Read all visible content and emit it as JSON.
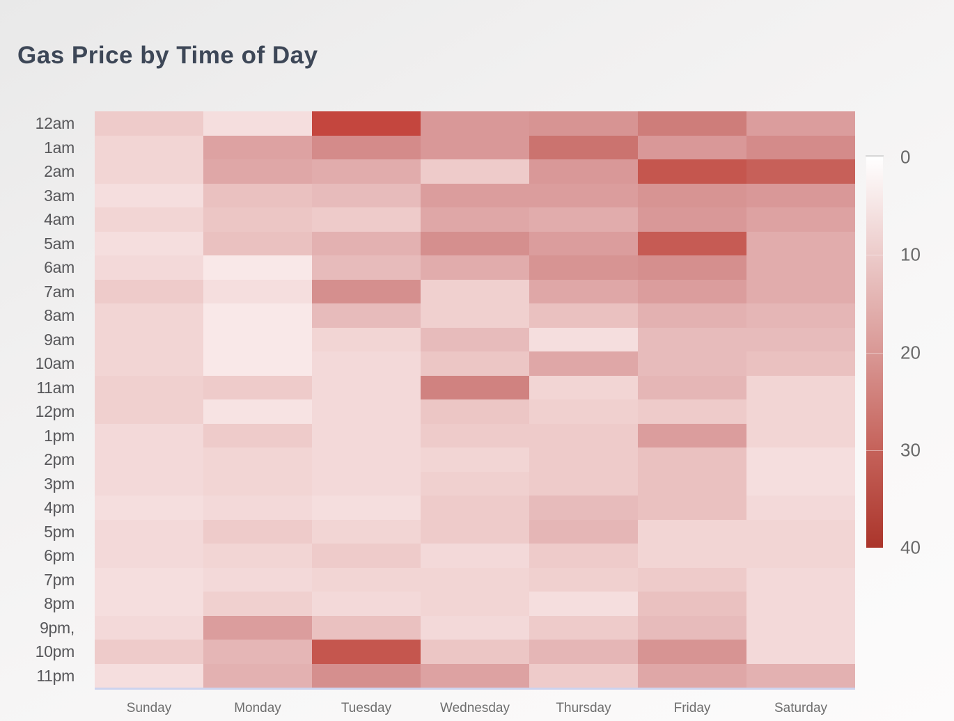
{
  "title": "Gas Price by Time of Day",
  "chart_data": {
    "type": "heatmap",
    "title": "Gas Price by Time of Day",
    "x_categories": [
      "Sunday",
      "Monday",
      "Tuesday",
      "Wednesday",
      "Thursday",
      "Friday",
      "Saturday"
    ],
    "y_categories": [
      "12am",
      "1am",
      "2am",
      "3am",
      "4am",
      "5am",
      "6am",
      "7am",
      "8am",
      "9am",
      "10am",
      "11am",
      "12pm",
      "1pm",
      "2pm",
      "3pm",
      "4pm",
      "5pm",
      "6pm",
      "7pm",
      "8pm",
      "9pm,",
      "10pm",
      "11pm"
    ],
    "values": [
      [
        10,
        6,
        37,
        20,
        21,
        26,
        19
      ],
      [
        8,
        18,
        23,
        20,
        28,
        20,
        23
      ],
      [
        8,
        17,
        16,
        10,
        20,
        34,
        32
      ],
      [
        6,
        12,
        13,
        19,
        19,
        21,
        20
      ],
      [
        8,
        11,
        10,
        17,
        16,
        20,
        18
      ],
      [
        6,
        12,
        15,
        22,
        19,
        33,
        16
      ],
      [
        7,
        4,
        13,
        16,
        21,
        22,
        16
      ],
      [
        10,
        6,
        22,
        9,
        17,
        19,
        16
      ],
      [
        8,
        4,
        13,
        9,
        12,
        15,
        14
      ],
      [
        8,
        4,
        8,
        13,
        6,
        13,
        13
      ],
      [
        8,
        4,
        7,
        11,
        17,
        13,
        12
      ],
      [
        9,
        10,
        7,
        25,
        8,
        14,
        8
      ],
      [
        9,
        5,
        7,
        11,
        9,
        10,
        8
      ],
      [
        7,
        10,
        7,
        10,
        10,
        19,
        8
      ],
      [
        7,
        8,
        7,
        8,
        10,
        12,
        6
      ],
      [
        7,
        8,
        7,
        9,
        10,
        12,
        6
      ],
      [
        6,
        7,
        6,
        10,
        13,
        12,
        7
      ],
      [
        7,
        10,
        8,
        10,
        14,
        8,
        8
      ],
      [
        7,
        8,
        10,
        7,
        10,
        8,
        8
      ],
      [
        6,
        7,
        8,
        8,
        9,
        10,
        7
      ],
      [
        6,
        9,
        7,
        8,
        6,
        12,
        7
      ],
      [
        7,
        19,
        12,
        7,
        10,
        13,
        7
      ],
      [
        10,
        14,
        34,
        11,
        14,
        21,
        7
      ],
      [
        6,
        15,
        22,
        18,
        10,
        17,
        15
      ]
    ],
    "value_range": [
      0,
      40
    ],
    "grid": "off",
    "legend_position": "right",
    "colorbar": {
      "ticks": [
        "0",
        "10",
        "20",
        "30",
        "40"
      ],
      "min": 0,
      "max": 40,
      "gradient_stops": [
        "#ffffff",
        "#eccbca",
        "#d99895",
        "#c5625a",
        "#ab352b"
      ]
    },
    "colorscale_anchors": [
      [
        0,
        255,
        251,
        251
      ],
      [
        5,
        247,
        227,
        227
      ],
      [
        10,
        238,
        203,
        202
      ],
      [
        15,
        227,
        177,
        177
      ],
      [
        20,
        217,
        152,
        152
      ],
      [
        25,
        208,
        130,
        128
      ],
      [
        30,
        200,
        105,
        100
      ],
      [
        34,
        197,
        86,
        78
      ],
      [
        37,
        196,
        70,
        62
      ],
      [
        40,
        180,
        55,
        45
      ]
    ]
  },
  "colors": {
    "title_text": "#3d4757",
    "y_label_text": "#57575a",
    "x_label_text": "#6f6f6f",
    "colorbar_tick_text": "#696969",
    "x_axis_line": "#cdd3ee",
    "max_heat": "#ab352b"
  }
}
